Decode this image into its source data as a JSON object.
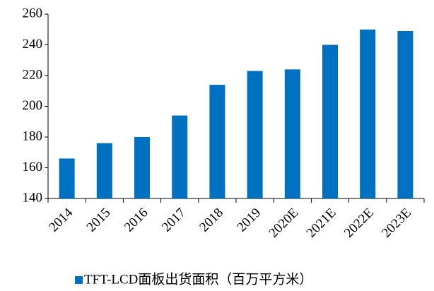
{
  "chart_data": {
    "type": "bar",
    "categories": [
      "2014",
      "2015",
      "2016",
      "2017",
      "2018",
      "2019",
      "2020E",
      "2021E",
      "2022E",
      "2023E"
    ],
    "series": [
      {
        "name": "TFT-LCD面板出货面积（百万平方米）",
        "color": "#0070c0",
        "values": [
          166,
          176,
          180,
          194,
          214,
          223,
          224,
          240,
          250,
          249
        ]
      }
    ],
    "ylim": [
      140,
      260
    ],
    "yticks": [
      140,
      160,
      180,
      200,
      220,
      240,
      260
    ],
    "grid": false,
    "legend": "bottom"
  }
}
